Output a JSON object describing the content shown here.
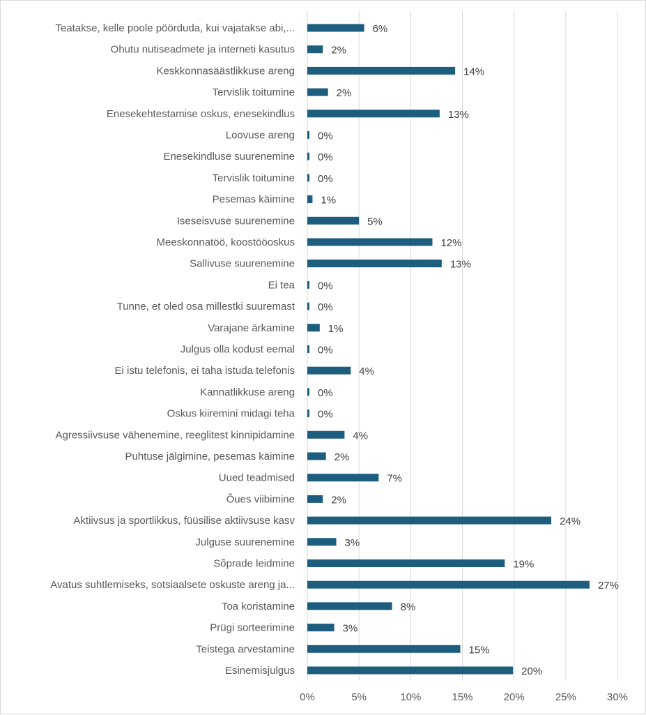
{
  "chart_data": {
    "type": "bar",
    "orientation": "horizontal",
    "categories": [
      "Teatakse, kelle poole pöörduda, kui vajatakse abi,...",
      "Ohutu nutiseadmete ja interneti kasutus",
      "Keskkonnasäästlikkuse areng",
      "Tervislik toitumine",
      "Enesekehtestamise oskus, enesekindlus",
      "Loovuse areng",
      "Enesekindluse suurenemine",
      "Tervislik toitumine",
      "Pesemas käimine",
      "Iseseisvuse suurenemine",
      "Meeskonnatöö, koostööoskus",
      "Sallivuse suurenemine",
      "Ei tea",
      "Tunne, et oled osa millestki suuremast",
      "Varajane ärkamine",
      "Julgus olla kodust eemal",
      "Ei istu telefonis, ei taha istuda telefonis",
      "Kannatlikkuse areng",
      "Oskus kiiremini midagi teha",
      "Agressiivsuse vähenemine, reeglitest kinnipidamine",
      "Puhtuse jälgimine, pesemas käimine",
      "Uued teadmised",
      "Õues viibimine",
      "Aktiivsus ja sportlikkus, füüsilise aktiivsuse kasv",
      "Julguse suurenemine",
      "Sõprade leidmine",
      "Avatus suhtlemiseks, sotsiaalsete oskuste areng ja...",
      "Toa koristamine",
      "Prügi sorteerimine",
      "Teistega arvestamine",
      "Esinemisjulgus"
    ],
    "values": [
      5.5,
      1.5,
      14.3,
      2.0,
      12.8,
      0.2,
      0.2,
      0.2,
      0.5,
      5.0,
      12.1,
      13.0,
      0.2,
      0.2,
      1.2,
      0.2,
      4.2,
      0.2,
      0.2,
      3.6,
      1.8,
      6.9,
      1.5,
      23.6,
      2.8,
      19.1,
      27.3,
      8.2,
      2.6,
      14.8,
      19.9
    ],
    "value_labels": [
      "6%",
      "2%",
      "14%",
      "2%",
      "13%",
      "0%",
      "0%",
      "0%",
      "1%",
      "5%",
      "12%",
      "13%",
      "0%",
      "0%",
      "1%",
      "0%",
      "4%",
      "0%",
      "0%",
      "4%",
      "2%",
      "7%",
      "2%",
      "24%",
      "3%",
      "19%",
      "27%",
      "8%",
      "3%",
      "15%",
      "20%"
    ],
    "xlim": [
      0,
      30
    ],
    "x_ticks": [
      0,
      5,
      10,
      15,
      20,
      25,
      30
    ],
    "x_tick_labels": [
      "0%",
      "5%",
      "10%",
      "15%",
      "20%",
      "25%",
      "30%"
    ],
    "title": "",
    "xlabel": "",
    "ylabel": "",
    "grid": "vertical",
    "legend": "none",
    "bar_color": "#1d5d7e",
    "grid_color": "#d9d9d9"
  }
}
